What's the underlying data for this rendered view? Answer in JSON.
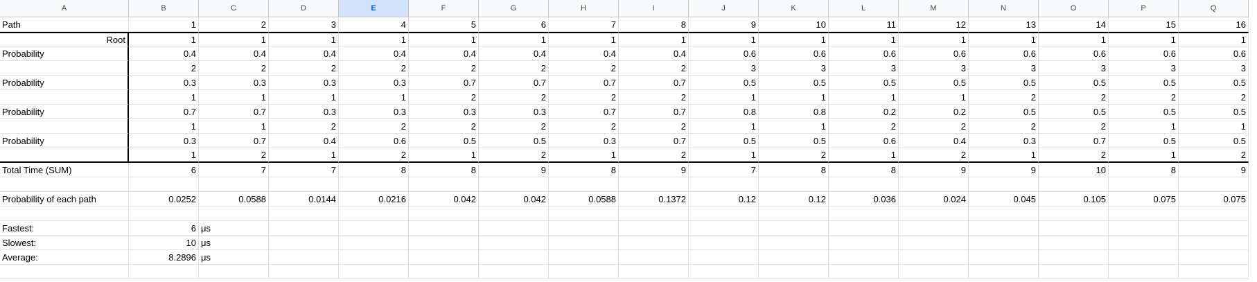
{
  "columns": [
    "A",
    "B",
    "C",
    "D",
    "E",
    "F",
    "G",
    "H",
    "I",
    "J",
    "K",
    "L",
    "M",
    "N",
    "O",
    "P",
    "Q"
  ],
  "selected_column": "E",
  "rows": [
    [
      "Path",
      "1",
      "2",
      "3",
      "4",
      "5",
      "6",
      "7",
      "8",
      "9",
      "10",
      "11",
      "12",
      "13",
      "14",
      "15",
      "16"
    ],
    [
      "Root",
      "1",
      "1",
      "1",
      "1",
      "1",
      "1",
      "1",
      "1",
      "1",
      "1",
      "1",
      "1",
      "1",
      "1",
      "1",
      "1"
    ],
    [
      "Probability",
      "0.4",
      "0.4",
      "0.4",
      "0.4",
      "0.4",
      "0.4",
      "0.4",
      "0.4",
      "0.6",
      "0.6",
      "0.6",
      "0.6",
      "0.6",
      "0.6",
      "0.6",
      "0.6"
    ],
    [
      "",
      "2",
      "2",
      "2",
      "2",
      "2",
      "2",
      "2",
      "2",
      "3",
      "3",
      "3",
      "3",
      "3",
      "3",
      "3",
      "3"
    ],
    [
      "Probability",
      "0.3",
      "0.3",
      "0.3",
      "0.3",
      "0.7",
      "0.7",
      "0.7",
      "0.7",
      "0.5",
      "0.5",
      "0.5",
      "0.5",
      "0.5",
      "0.5",
      "0.5",
      "0.5"
    ],
    [
      "",
      "1",
      "1",
      "1",
      "1",
      "2",
      "2",
      "2",
      "2",
      "1",
      "1",
      "1",
      "1",
      "2",
      "2",
      "2",
      "2"
    ],
    [
      "Probability",
      "0.7",
      "0.7",
      "0.3",
      "0.3",
      "0.3",
      "0.3",
      "0.7",
      "0.7",
      "0.8",
      "0.8",
      "0.2",
      "0.2",
      "0.5",
      "0.5",
      "0.5",
      "0.5"
    ],
    [
      "",
      "1",
      "1",
      "2",
      "2",
      "2",
      "2",
      "2",
      "2",
      "1",
      "1",
      "2",
      "2",
      "2",
      "2",
      "1",
      "1"
    ],
    [
      "Probability",
      "0.3",
      "0.7",
      "0.4",
      "0.6",
      "0.5",
      "0.5",
      "0.3",
      "0.7",
      "0.5",
      "0.5",
      "0.6",
      "0.4",
      "0.3",
      "0.7",
      "0.5",
      "0.5"
    ],
    [
      "",
      "1",
      "2",
      "1",
      "2",
      "1",
      "2",
      "1",
      "2",
      "1",
      "2",
      "1",
      "2",
      "1",
      "2",
      "1",
      "2"
    ],
    [
      "Total Time (SUM)",
      "6",
      "7",
      "7",
      "8",
      "8",
      "9",
      "8",
      "9",
      "7",
      "8",
      "8",
      "9",
      "9",
      "10",
      "8",
      "9"
    ],
    [
      "",
      "",
      "",
      "",
      "",
      "",
      "",
      "",
      "",
      "",
      "",
      "",
      "",
      "",
      "",
      "",
      ""
    ],
    [
      "Probability of each path",
      "0.0252",
      "0.0588",
      "0.0144",
      "0.0216",
      "0.042",
      "0.042",
      "0.0588",
      "0.1372",
      "0.12",
      "0.12",
      "0.036",
      "0.024",
      "0.045",
      "0.105",
      "0.075",
      "0.075"
    ],
    [
      "",
      "",
      "",
      "",
      "",
      "",
      "",
      "",
      "",
      "",
      "",
      "",
      "",
      "",
      "",
      "",
      ""
    ],
    [
      "Fastest:",
      "6",
      "μs",
      "",
      "",
      "",
      "",
      "",
      "",
      "",
      "",
      "",
      "",
      "",
      "",
      "",
      ""
    ],
    [
      "Slowest:",
      "10",
      "μs",
      "",
      "",
      "",
      "",
      "",
      "",
      "",
      "",
      "",
      "",
      "",
      "",
      "",
      ""
    ],
    [
      "Average:",
      "8.2896",
      "μs",
      "",
      "",
      "",
      "",
      "",
      "",
      "",
      "",
      "",
      "",
      "",
      "",
      "",
      ""
    ],
    [
      "",
      "",
      "",
      "",
      "",
      "",
      "",
      "",
      "",
      "",
      "",
      "",
      "",
      "",
      "",
      "",
      ""
    ]
  ]
}
